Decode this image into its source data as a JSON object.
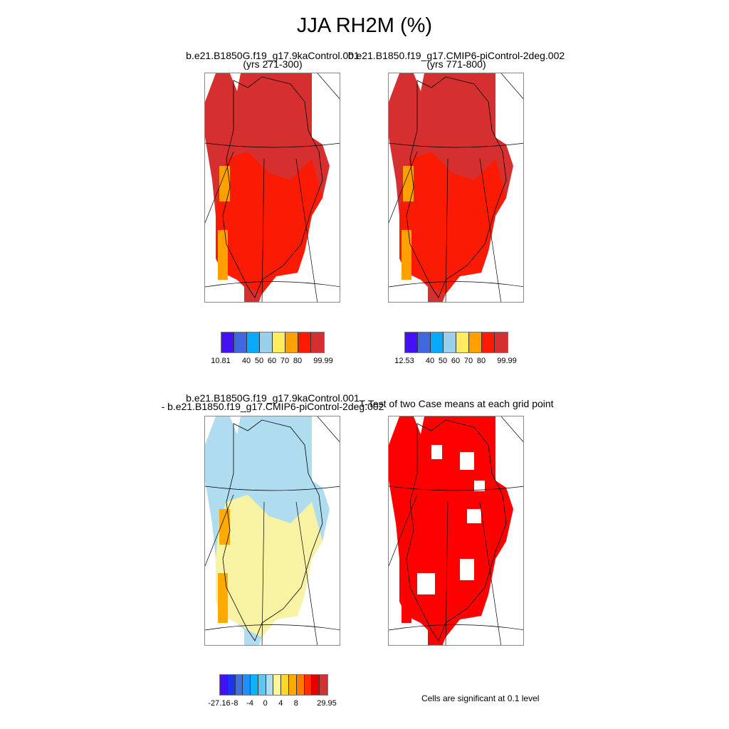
{
  "title": "JJA RH2M (%)",
  "panels": [
    {
      "title_lines": [
        "b.e21.B1850G.f19_g17.9kaControl.001",
        "(yrs 271-300)"
      ],
      "dominant": "#d62f2f",
      "secondary": "#ff1a00",
      "accent": "#ffa000"
    },
    {
      "title_lines": [
        "b.e21.B1850.f19_g17.CMIP6-piControl-2deg.002",
        "(yrs 771-800)"
      ],
      "dominant": "#d62f2f",
      "secondary": "#ff1a00",
      "accent": "#ffa000"
    },
    {
      "title_lines": [
        "b.e21.B1850G.f19_g17.9kaControl.001",
        "- b.e21.B1850.f19_g17.CMIP6-piControl-2deg.002"
      ],
      "dominant": "#b0dcf0",
      "secondary": "#fff59a",
      "accent": "#ffaa00"
    },
    {
      "title_lines": [
        "T-Test of two Case means at each grid point"
      ],
      "dominant": "#ff0000",
      "secondary": "#ff0000",
      "accent": "#ff0000"
    }
  ],
  "colorbars": [
    {
      "colors": [
        "#4411f5",
        "#3f68e0",
        "#0aa8fa",
        "#98d0ec",
        "#ffeb5e",
        "#ffa000",
        "#ff1a00",
        "#d62f2f"
      ],
      "labels": [
        "10.81",
        "40",
        "50",
        "60",
        "70",
        "80",
        "99.99"
      ],
      "label_positions": [
        0,
        2,
        3,
        4,
        5,
        6,
        8
      ]
    },
    {
      "colors": [
        "#4411f5",
        "#3f68e0",
        "#0aa8fa",
        "#98d0ec",
        "#ffeb5e",
        "#ffa000",
        "#ff1a00",
        "#d62f2f"
      ],
      "labels": [
        "12.53",
        "40",
        "50",
        "60",
        "70",
        "80",
        "99.99"
      ],
      "label_positions": [
        0,
        2,
        3,
        4,
        5,
        6,
        8
      ]
    },
    {
      "colors": [
        "#4411f5",
        "#1a35f0",
        "#3f6ee0",
        "#1e90ff",
        "#0ab4fa",
        "#64c4f0",
        "#b0dcf0",
        "#fff59a",
        "#ffd628",
        "#ffaa00",
        "#ff7800",
        "#ff2d00",
        "#e60000",
        "#d62f2f"
      ],
      "labels": [
        "-27.16",
        "-8",
        "-4",
        "0",
        "4",
        "8",
        "29.95"
      ],
      "label_positions": [
        0,
        2,
        4,
        6,
        8,
        10,
        14
      ]
    }
  ],
  "significance_note": "Cells are significant at 0.1 level"
}
